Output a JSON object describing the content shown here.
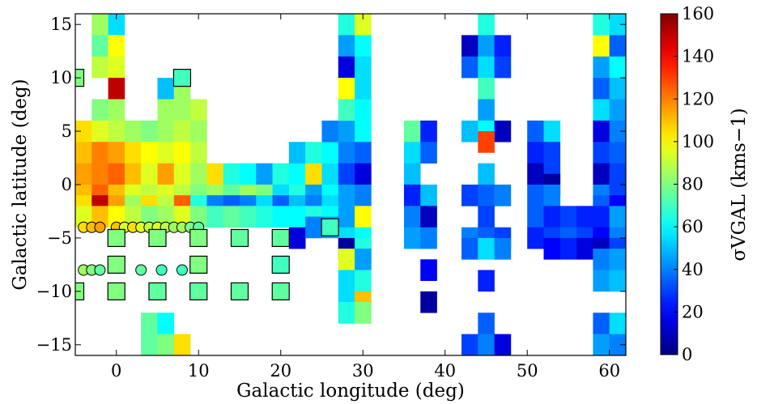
{
  "chart_data": {
    "type": "heatmap",
    "title": "",
    "xlabel": "Galactic longitude (deg)",
    "ylabel": "Galactic latitude (deg)",
    "colorbar_label": "σ_{V_GAL} (kms⁻¹)",
    "colorbar_label_text": "σVGAL (kms−1)",
    "xlim": [
      -5,
      62
    ],
    "ylim": [
      -16,
      16
    ],
    "xticks": [
      0,
      10,
      20,
      30,
      40,
      50,
      60
    ],
    "xtick_labels": [
      "0",
      "10",
      "20",
      "30",
      "40",
      "50",
      "60"
    ],
    "yticks": [
      15,
      10,
      5,
      0,
      -5,
      -10,
      -15
    ],
    "ytick_labels": [
      "15",
      "10",
      "5",
      "0",
      "−5",
      "−10",
      "−15"
    ],
    "clim": [
      0,
      160
    ],
    "cticks": [
      0,
      20,
      40,
      60,
      80,
      100,
      120,
      140,
      160
    ],
    "ctick_labels": [
      "0",
      "20",
      "40",
      "60",
      "80",
      "100",
      "120",
      "140",
      "160"
    ],
    "colormap": "jet",
    "grid": false,
    "cells": [
      {
        "l": -2,
        "b": 15,
        "v": 85
      },
      {
        "l": 0,
        "b": 15,
        "v": 55
      },
      {
        "l": -2,
        "b": 13,
        "v": 75
      },
      {
        "l": 0,
        "b": 13,
        "v": 100
      },
      {
        "l": -2,
        "b": 11,
        "v": 90
      },
      {
        "l": 0,
        "b": 11,
        "v": 95
      },
      {
        "l": 0,
        "b": 9,
        "v": 150
      },
      {
        "l": -2,
        "b": 7,
        "v": 80
      },
      {
        "l": 0,
        "b": 7,
        "v": 85
      },
      {
        "l": 6,
        "b": 9,
        "v": 50
      },
      {
        "l": 8,
        "b": 9,
        "v": 85
      },
      {
        "l": 6,
        "b": 7,
        "v": 85
      },
      {
        "l": 8,
        "b": 7,
        "v": 85
      },
      {
        "l": 10,
        "b": 7,
        "v": 90
      },
      {
        "l": -4,
        "b": 5,
        "v": 105
      },
      {
        "l": -2,
        "b": 5,
        "v": 95
      },
      {
        "l": 0,
        "b": 5,
        "v": 90
      },
      {
        "l": 2,
        "b": 5,
        "v": 85
      },
      {
        "l": 4,
        "b": 5,
        "v": 80
      },
      {
        "l": 6,
        "b": 5,
        "v": 85
      },
      {
        "l": 8,
        "b": 5,
        "v": 90
      },
      {
        "l": 10,
        "b": 5,
        "v": 85
      },
      {
        "l": -4,
        "b": 3,
        "v": 110
      },
      {
        "l": -2,
        "b": 3,
        "v": 120
      },
      {
        "l": 0,
        "b": 3,
        "v": 115
      },
      {
        "l": 2,
        "b": 3,
        "v": 105
      },
      {
        "l": 4,
        "b": 3,
        "v": 100
      },
      {
        "l": 6,
        "b": 3,
        "v": 95
      },
      {
        "l": 8,
        "b": 3,
        "v": 100
      },
      {
        "l": 10,
        "b": 3,
        "v": 90
      },
      {
        "l": -4,
        "b": 1,
        "v": 115
      },
      {
        "l": -2,
        "b": 1,
        "v": 120
      },
      {
        "l": 0,
        "b": 1,
        "v": 125
      },
      {
        "l": 2,
        "b": 1,
        "v": 110
      },
      {
        "l": 4,
        "b": 1,
        "v": 95
      },
      {
        "l": 6,
        "b": 1,
        "v": 115
      },
      {
        "l": 8,
        "b": 1,
        "v": 95
      },
      {
        "l": 10,
        "b": 1,
        "v": 85
      },
      {
        "l": 12,
        "b": 1,
        "v": 105
      },
      {
        "l": 14,
        "b": 1,
        "v": 65
      },
      {
        "l": 16,
        "b": 1,
        "v": 60
      },
      {
        "l": 18,
        "b": 1,
        "v": 45
      },
      {
        "l": 20,
        "b": 1,
        "v": 65
      },
      {
        "l": 22,
        "b": 1,
        "v": 60
      },
      {
        "l": 24,
        "b": 1,
        "v": 105
      },
      {
        "l": 26,
        "b": 1,
        "v": 55
      },
      {
        "l": -4,
        "b": -1,
        "v": 110
      },
      {
        "l": -2,
        "b": -1,
        "v": 125
      },
      {
        "l": 0,
        "b": -1,
        "v": 110
      },
      {
        "l": 2,
        "b": -1,
        "v": 95
      },
      {
        "l": 4,
        "b": -1,
        "v": 90
      },
      {
        "l": 6,
        "b": -1,
        "v": 95
      },
      {
        "l": 8,
        "b": -1,
        "v": 90
      },
      {
        "l": 10,
        "b": -1,
        "v": 80
      },
      {
        "l": 12,
        "b": -1,
        "v": 85
      },
      {
        "l": 14,
        "b": -1,
        "v": 75
      },
      {
        "l": 16,
        "b": -1,
        "v": 85
      },
      {
        "l": 18,
        "b": -1,
        "v": 80
      },
      {
        "l": 20,
        "b": -1,
        "v": 55
      },
      {
        "l": 22,
        "b": -1,
        "v": 65
      },
      {
        "l": 24,
        "b": -1,
        "v": 45
      },
      {
        "l": 26,
        "b": -1,
        "v": 60
      },
      {
        "l": -4,
        "b": -2,
        "v": 105
      },
      {
        "l": -2,
        "b": -2,
        "v": 150
      },
      {
        "l": 0,
        "b": -2,
        "v": 115
      },
      {
        "l": 2,
        "b": -2,
        "v": 85
      },
      {
        "l": 4,
        "b": -2,
        "v": 105
      },
      {
        "l": 6,
        "b": -2,
        "v": 90
      },
      {
        "l": 8,
        "b": -2,
        "v": 125
      },
      {
        "l": 10,
        "b": -2,
        "v": 65
      },
      {
        "l": 12,
        "b": -2,
        "v": 40
      },
      {
        "l": 14,
        "b": -2,
        "v": 35
      },
      {
        "l": 16,
        "b": -2,
        "v": 40
      },
      {
        "l": 18,
        "b": -2,
        "v": 55
      },
      {
        "l": 20,
        "b": -2,
        "v": 35
      },
      {
        "l": 22,
        "b": -2,
        "v": 50
      },
      {
        "l": 24,
        "b": -2,
        "v": 40
      },
      {
        "l": 26,
        "b": -2,
        "v": 55
      },
      {
        "l": -4,
        "b": -3,
        "v": 95
      },
      {
        "l": -2,
        "b": -3,
        "v": 110
      },
      {
        "l": 0,
        "b": -3,
        "v": 100
      },
      {
        "l": 2,
        "b": -3,
        "v": 90
      },
      {
        "l": 4,
        "b": -3,
        "v": 80
      },
      {
        "l": 6,
        "b": -3,
        "v": 85
      },
      {
        "l": 8,
        "b": -3,
        "v": 95
      },
      {
        "l": 10,
        "b": -3,
        "v": 80
      },
      {
        "l": 12,
        "b": -3,
        "v": 70
      },
      {
        "l": 14,
        "b": -3,
        "v": 75
      },
      {
        "l": 16,
        "b": -3,
        "v": 70
      },
      {
        "l": 18,
        "b": -3,
        "v": 65
      },
      {
        "l": 20,
        "b": -3,
        "v": 60
      },
      {
        "l": 22,
        "b": -3,
        "v": 60
      },
      {
        "l": 24,
        "b": -3,
        "v": 65
      },
      {
        "l": 26,
        "b": -3,
        "v": 60
      },
      {
        "l": 22,
        "b": 3,
        "v": 50
      },
      {
        "l": 24,
        "b": 3,
        "v": 65
      },
      {
        "l": 26,
        "b": 3,
        "v": 60
      },
      {
        "l": 22,
        "b": -5,
        "v": 15
      },
      {
        "l": 24,
        "b": -4,
        "v": 40
      },
      {
        "l": 26,
        "b": -4,
        "v": 45
      },
      {
        "l": 26,
        "b": 5,
        "v": 40
      },
      {
        "l": 28,
        "b": 5,
        "v": 45
      },
      {
        "l": 30,
        "b": 5,
        "v": 60
      },
      {
        "l": 28,
        "b": 3,
        "v": 40
      },
      {
        "l": 30,
        "b": 3,
        "v": 35
      },
      {
        "l": 28,
        "b": 1,
        "v": 30
      },
      {
        "l": 30,
        "b": 1,
        "v": 15
      },
      {
        "l": 28,
        "b": -1,
        "v": 45
      },
      {
        "l": 30,
        "b": -1,
        "v": 40
      },
      {
        "l": 28,
        "b": -3,
        "v": 45
      },
      {
        "l": 30,
        "b": -3,
        "v": 100
      },
      {
        "l": 28,
        "b": -5,
        "v": 55
      },
      {
        "l": 30,
        "b": -5,
        "v": 60
      },
      {
        "l": 28,
        "b": -6,
        "v": 5
      },
      {
        "l": 30,
        "b": -6,
        "v": 65
      },
      {
        "l": 28,
        "b": -7,
        "v": 95
      },
      {
        "l": 30,
        "b": -7,
        "v": 45
      },
      {
        "l": 28,
        "b": -9,
        "v": 55
      },
      {
        "l": 30,
        "b": -9,
        "v": 65
      },
      {
        "l": 28,
        "b": -11,
        "v": 55
      },
      {
        "l": 30,
        "b": -11,
        "v": 110
      },
      {
        "l": 28,
        "b": -12,
        "v": 65
      },
      {
        "l": 30,
        "b": -12,
        "v": 80
      },
      {
        "l": 28,
        "b": 15,
        "v": 65
      },
      {
        "l": 30,
        "b": 15,
        "v": 95
      },
      {
        "l": 28,
        "b": 13,
        "v": 45
      },
      {
        "l": 30,
        "b": 13,
        "v": 60
      },
      {
        "l": 28,
        "b": 11,
        "v": 15
      },
      {
        "l": 30,
        "b": 11,
        "v": 55
      },
      {
        "l": 28,
        "b": 9,
        "v": 100
      },
      {
        "l": 30,
        "b": 9,
        "v": 55
      },
      {
        "l": 28,
        "b": 7,
        "v": 70
      },
      {
        "l": 30,
        "b": 7,
        "v": 60
      },
      {
        "l": 36,
        "b": 5,
        "v": 75
      },
      {
        "l": 38,
        "b": 5,
        "v": 25
      },
      {
        "l": 36,
        "b": 3,
        "v": 55
      },
      {
        "l": 38,
        "b": 3,
        "v": 35
      },
      {
        "l": 36,
        "b": 1,
        "v": 50
      },
      {
        "l": 36,
        "b": -1,
        "v": 25
      },
      {
        "l": 38,
        "b": -1,
        "v": 50
      },
      {
        "l": 36,
        "b": -3,
        "v": 40
      },
      {
        "l": 36,
        "b": -5,
        "v": 45
      },
      {
        "l": 38,
        "b": -3,
        "v": 10
      },
      {
        "l": 38,
        "b": -5,
        "v": 40
      },
      {
        "l": 38,
        "b": -8,
        "v": 20
      },
      {
        "l": 38,
        "b": -11,
        "v": 5
      },
      {
        "l": 43,
        "b": 13,
        "v": 10
      },
      {
        "l": 45,
        "b": 15,
        "v": 65
      },
      {
        "l": 45,
        "b": 13,
        "v": 45
      },
      {
        "l": 47,
        "b": 13,
        "v": 25
      },
      {
        "l": 43,
        "b": 11,
        "v": 35
      },
      {
        "l": 45,
        "b": 11,
        "v": 55
      },
      {
        "l": 47,
        "b": 11,
        "v": 30
      },
      {
        "l": 45,
        "b": 9,
        "v": 70
      },
      {
        "l": 45,
        "b": 7,
        "v": 45
      },
      {
        "l": 43,
        "b": 5,
        "v": 50
      },
      {
        "l": 45,
        "b": 5,
        "v": 60
      },
      {
        "l": 47,
        "b": 5,
        "v": 10
      },
      {
        "l": 45,
        "b": 4,
        "v": 130
      },
      {
        "l": 45,
        "b": 1,
        "v": 50
      },
      {
        "l": 43,
        "b": -1,
        "v": 30
      },
      {
        "l": 45,
        "b": -1,
        "v": 35
      },
      {
        "l": 47,
        "b": -1,
        "v": 40
      },
      {
        "l": 45,
        "b": -3,
        "v": 30
      },
      {
        "l": 43,
        "b": -5,
        "v": 40
      },
      {
        "l": 45,
        "b": -5,
        "v": 35
      },
      {
        "l": 47,
        "b": -5,
        "v": 30
      },
      {
        "l": 43,
        "b": -6,
        "v": 35
      },
      {
        "l": 45,
        "b": -6,
        "v": 55
      },
      {
        "l": 47,
        "b": -6,
        "v": 40
      },
      {
        "l": 45,
        "b": -9,
        "v": 25
      },
      {
        "l": 45,
        "b": -13,
        "v": 35
      },
      {
        "l": 43,
        "b": -15,
        "v": 30
      },
      {
        "l": 45,
        "b": -15,
        "v": 40
      },
      {
        "l": 47,
        "b": -15,
        "v": 15
      },
      {
        "l": 45,
        "b": -17,
        "v": 20
      },
      {
        "l": 51,
        "b": 5,
        "v": 35
      },
      {
        "l": 53,
        "b": 5,
        "v": 55
      },
      {
        "l": 51,
        "b": 3,
        "v": 25
      },
      {
        "l": 53,
        "b": 3,
        "v": 30
      },
      {
        "l": 51,
        "b": 1,
        "v": 10
      },
      {
        "l": 53,
        "b": 1,
        "v": 30
      },
      {
        "l": 53,
        "b": 0,
        "v": 5
      },
      {
        "l": 51,
        "b": -1,
        "v": 35
      },
      {
        "l": 53,
        "b": -1,
        "v": 40
      },
      {
        "l": 51,
        "b": -3,
        "v": 35
      },
      {
        "l": 53,
        "b": -3,
        "v": 25
      },
      {
        "l": 55,
        "b": -3,
        "v": 30
      },
      {
        "l": 57,
        "b": -3,
        "v": 25
      },
      {
        "l": 51,
        "b": -5,
        "v": 25
      },
      {
        "l": 53,
        "b": -5,
        "v": 30
      },
      {
        "l": 55,
        "b": -5,
        "v": 35
      },
      {
        "l": 57,
        "b": -5,
        "v": 30
      },
      {
        "l": 53,
        "b": -6,
        "v": 20
      },
      {
        "l": 55,
        "b": -6,
        "v": 25
      },
      {
        "l": 57,
        "b": -6,
        "v": 15
      },
      {
        "l": 59,
        "b": 15,
        "v": 65
      },
      {
        "l": 61,
        "b": 15,
        "v": 55
      },
      {
        "l": 59,
        "b": 13,
        "v": 100
      },
      {
        "l": 61,
        "b": 13,
        "v": 35
      },
      {
        "l": 59,
        "b": 11,
        "v": 45
      },
      {
        "l": 61,
        "b": 11,
        "v": 60
      },
      {
        "l": 59,
        "b": 9,
        "v": 35
      },
      {
        "l": 61,
        "b": 9,
        "v": 50
      },
      {
        "l": 59,
        "b": 7,
        "v": 55
      },
      {
        "l": 61,
        "b": 7,
        "v": 45
      },
      {
        "l": 59,
        "b": 5,
        "v": 15
      },
      {
        "l": 61,
        "b": 5,
        "v": 40
      },
      {
        "l": 59,
        "b": 3,
        "v": 30
      },
      {
        "l": 61,
        "b": 3,
        "v": 35
      },
      {
        "l": 59,
        "b": 1,
        "v": 10
      },
      {
        "l": 61,
        "b": 1,
        "v": 30
      },
      {
        "l": 59,
        "b": -1,
        "v": 40
      },
      {
        "l": 61,
        "b": -1,
        "v": 30
      },
      {
        "l": 59,
        "b": -2,
        "v": 35
      },
      {
        "l": 61,
        "b": -2,
        "v": 20
      },
      {
        "l": 59,
        "b": -3,
        "v": 25
      },
      {
        "l": 61,
        "b": -3,
        "v": 45
      },
      {
        "l": 59,
        "b": -5,
        "v": 20
      },
      {
        "l": 61,
        "b": -5,
        "v": 40
      },
      {
        "l": 59,
        "b": -6,
        "v": 10
      },
      {
        "l": 61,
        "b": -6,
        "v": 30
      },
      {
        "l": 59,
        "b": -7,
        "v": 40
      },
      {
        "l": 61,
        "b": -7,
        "v": 45
      },
      {
        "l": 59,
        "b": -9,
        "v": 45
      },
      {
        "l": 61,
        "b": -9,
        "v": 50
      },
      {
        "l": 59,
        "b": -13,
        "v": 35
      },
      {
        "l": 61,
        "b": -13,
        "v": 55
      },
      {
        "l": 59,
        "b": -15,
        "v": 45
      },
      {
        "l": 61,
        "b": -15,
        "v": 40
      },
      {
        "l": 4,
        "b": -13,
        "v": 75
      },
      {
        "l": 6,
        "b": -13,
        "v": 60
      },
      {
        "l": 4,
        "b": -15,
        "v": 75
      },
      {
        "l": 6,
        "b": -15,
        "v": 80
      },
      {
        "l": 8,
        "b": -15,
        "v": 105
      },
      {
        "l": 4,
        "b": -17,
        "v": 80
      },
      {
        "l": 6,
        "b": -17,
        "v": 65
      }
    ],
    "squares": [
      {
        "l": -5,
        "b": 10,
        "v": 80
      },
      {
        "l": 8,
        "b": 10,
        "v": 70
      },
      {
        "l": 0,
        "b": -5,
        "v": 80
      },
      {
        "l": 5,
        "b": -5,
        "v": 80
      },
      {
        "l": 10,
        "b": -5,
        "v": 80
      },
      {
        "l": 15,
        "b": -5,
        "v": 75
      },
      {
        "l": 20,
        "b": -5,
        "v": 75
      },
      {
        "l": 26,
        "b": -4,
        "v": 70
      },
      {
        "l": 0,
        "b": -7.5,
        "v": 80
      },
      {
        "l": 10,
        "b": -7.5,
        "v": 80
      },
      {
        "l": 20,
        "b": -7.5,
        "v": 70
      },
      {
        "l": -5,
        "b": -10,
        "v": 80
      },
      {
        "l": 0,
        "b": -10,
        "v": 80
      },
      {
        "l": 5,
        "b": -10,
        "v": 75
      },
      {
        "l": 10,
        "b": -10,
        "v": 75
      },
      {
        "l": 15,
        "b": -10,
        "v": 75
      },
      {
        "l": 20,
        "b": -10,
        "v": 75
      }
    ],
    "circles": [
      {
        "l": -4,
        "b": -4,
        "v": 105
      },
      {
        "l": -3,
        "b": -4,
        "v": 110
      },
      {
        "l": -2,
        "b": -4,
        "v": 115
      },
      {
        "l": 0,
        "b": -4,
        "v": 110
      },
      {
        "l": 1,
        "b": -4,
        "v": 95
      },
      {
        "l": 2,
        "b": -4,
        "v": 105
      },
      {
        "l": 3,
        "b": -4,
        "v": 95
      },
      {
        "l": 4,
        "b": -4,
        "v": 90
      },
      {
        "l": 5,
        "b": -4,
        "v": 95
      },
      {
        "l": 6,
        "b": -4,
        "v": 90
      },
      {
        "l": 7,
        "b": -4,
        "v": 85
      },
      {
        "l": 8,
        "b": -4,
        "v": 85
      },
      {
        "l": 9,
        "b": -4,
        "v": 80
      },
      {
        "l": 10,
        "b": -4,
        "v": 75
      },
      {
        "l": -4,
        "b": -8,
        "v": 85
      },
      {
        "l": -3,
        "b": -8,
        "v": 80
      },
      {
        "l": -2,
        "b": -8,
        "v": 75
      },
      {
        "l": 3,
        "b": -8,
        "v": 75
      },
      {
        "l": 5.5,
        "b": -8,
        "v": 70
      },
      {
        "l": 8,
        "b": -8,
        "v": 70
      }
    ]
  }
}
